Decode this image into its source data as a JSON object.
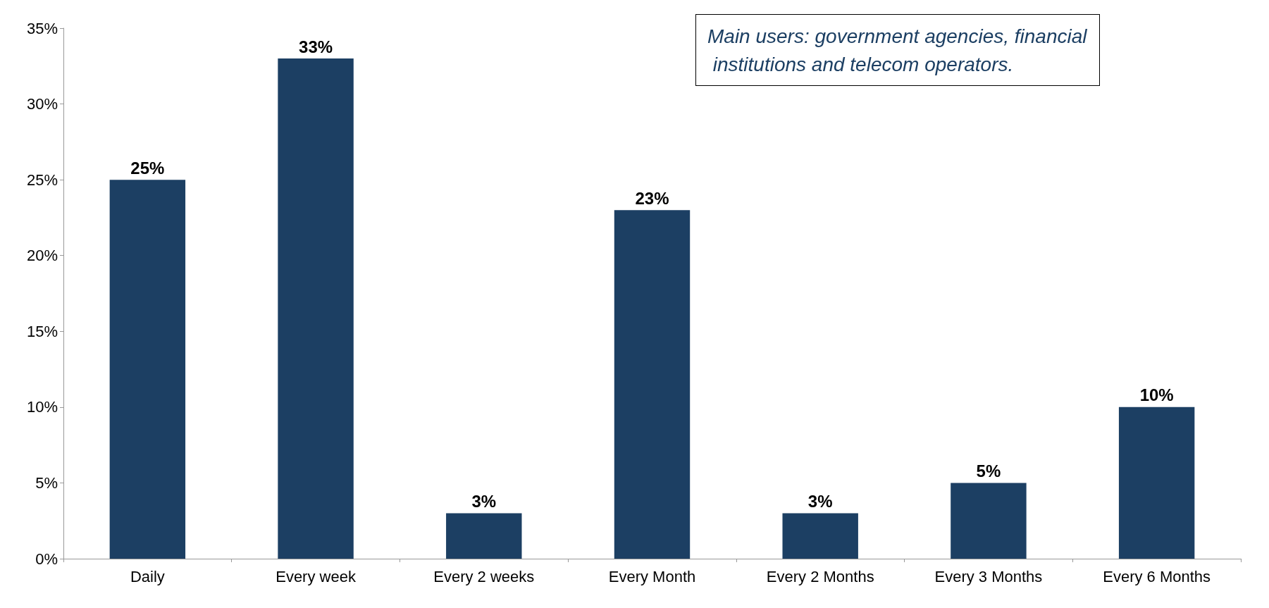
{
  "chart_data": {
    "type": "bar",
    "categories": [
      "Daily",
      "Every week",
      "Every 2 weeks",
      "Every Month",
      "Every 2 Months",
      "Every 3 Months",
      "Every 6 Months"
    ],
    "values": [
      25,
      33,
      3,
      23,
      3,
      5,
      10
    ],
    "value_labels": [
      "25%",
      "33%",
      "3%",
      "23%",
      "3%",
      "5%",
      "10%"
    ],
    "color": "#1c3f63",
    "ylim": [
      0,
      35
    ],
    "yticks": [
      {
        "value": 0,
        "label": "0%"
      },
      {
        "value": 5,
        "label": "5%"
      },
      {
        "value": 10,
        "label": "10%"
      },
      {
        "value": 15,
        "label": "15%"
      },
      {
        "value": 20,
        "label": "20%"
      },
      {
        "value": 25,
        "label": "25%"
      },
      {
        "value": 30,
        "label": "30%"
      },
      {
        "value": 35,
        "label": "35%"
      }
    ],
    "annotations": [
      "Main users: government agencies, financial institutions and telecom operators."
    ]
  }
}
